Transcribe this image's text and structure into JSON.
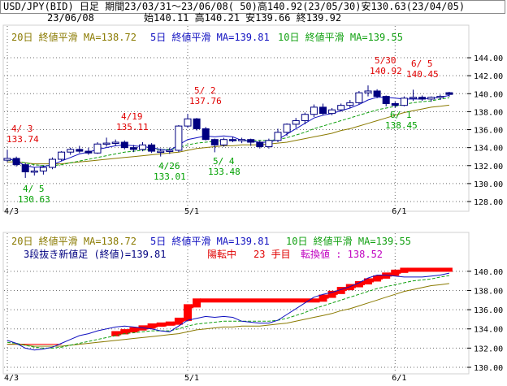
{
  "header": {
    "title": "USD/JPY(BID) 日足 期間23/03/31～23/06/08( 50)高140.92(23/05/30)安130.63(23/04/05)",
    "date": "23/06/08",
    "ohlc": "始140.11 高140.21 安139.66 終139.92"
  },
  "colors": {
    "ma20": "#8a7a00",
    "ma5": "#1010c0",
    "ma10": "#10a010",
    "candle": "#000080",
    "high_label": "#e00000",
    "low_label": "#00a000",
    "line_break": "#ff0000",
    "reversal_value": "#c000c0",
    "grid": "#6e6e6e",
    "frame": "#d0d0d0"
  },
  "upper": {
    "legend": {
      "ma20": "20日 終値平滑 MA=138.72",
      "ma5": "5日 終値平滑 MA=139.81",
      "ma10": "10日 終値平滑 MA=139.55"
    }
  },
  "lower": {
    "legend": {
      "ma20": "20日 終値平滑 MA=138.72",
      "ma5": "5日 終値平滑 MA=139.81",
      "ma10": "10日 終値平滑 MA=139.55"
    },
    "status": {
      "part1": "3段抜き新値足 (終値)=139.81",
      "part2": "陽転中",
      "part3": "23 手目",
      "part4": "転換値 : 138.52"
    }
  },
  "chart_data": [
    {
      "type": "candlestick",
      "title": "USD/JPY(BID) 日足",
      "ylim": [
        128,
        145
      ],
      "y_ticks": [
        "144.00",
        "142.00",
        "140.00",
        "138.00",
        "136.00",
        "134.00",
        "132.00",
        "130.00",
        "128.00"
      ],
      "x_tick_labels": [
        "4/3",
        "5/1",
        "6/1"
      ],
      "annotations": [
        {
          "date": "4/3",
          "label": "4/ 3",
          "value": "133.74",
          "kind": "high"
        },
        {
          "date": "4/5",
          "label": "4/ 5",
          "value": "130.63",
          "kind": "low"
        },
        {
          "date": "4/19",
          "label": "4/19",
          "value": "135.11",
          "kind": "high"
        },
        {
          "date": "4/26",
          "label": "4/26",
          "value": "133.01",
          "kind": "low"
        },
        {
          "date": "5/2",
          "label": "5/ 2",
          "value": "137.76",
          "kind": "high"
        },
        {
          "date": "5/4",
          "label": "5/ 4",
          "value": "133.48",
          "kind": "low"
        },
        {
          "date": "5/30",
          "label": "5/30",
          "value": "140.92",
          "kind": "high"
        },
        {
          "date": "6/1",
          "label": "6/ 1",
          "value": "138.45",
          "kind": "low"
        },
        {
          "date": "6/5",
          "label": "6/ 5",
          "value": "140.45",
          "kind": "high"
        }
      ],
      "candles": [
        {
          "o": 132.6,
          "h": 133.74,
          "l": 132.4,
          "c": 132.8
        },
        {
          "o": 132.8,
          "h": 133.0,
          "l": 131.9,
          "c": 132.1
        },
        {
          "o": 132.1,
          "h": 132.3,
          "l": 130.63,
          "c": 131.3
        },
        {
          "o": 131.3,
          "h": 131.8,
          "l": 130.9,
          "c": 131.4
        },
        {
          "o": 131.4,
          "h": 132.0,
          "l": 131.0,
          "c": 131.8
        },
        {
          "o": 131.8,
          "h": 132.9,
          "l": 131.6,
          "c": 132.7
        },
        {
          "o": 132.7,
          "h": 133.6,
          "l": 132.5,
          "c": 133.5
        },
        {
          "o": 133.5,
          "h": 134.0,
          "l": 133.2,
          "c": 133.8
        },
        {
          "o": 133.8,
          "h": 134.2,
          "l": 133.4,
          "c": 133.6
        },
        {
          "o": 133.6,
          "h": 134.0,
          "l": 133.2,
          "c": 133.4
        },
        {
          "o": 133.4,
          "h": 134.6,
          "l": 133.3,
          "c": 134.4
        },
        {
          "o": 134.4,
          "h": 135.11,
          "l": 134.1,
          "c": 134.5
        },
        {
          "o": 134.5,
          "h": 134.9,
          "l": 134.2,
          "c": 134.6
        },
        {
          "o": 134.6,
          "h": 134.8,
          "l": 133.8,
          "c": 134.0
        },
        {
          "o": 134.0,
          "h": 134.3,
          "l": 133.5,
          "c": 133.8
        },
        {
          "o": 133.8,
          "h": 134.6,
          "l": 133.6,
          "c": 134.3
        },
        {
          "o": 134.3,
          "h": 134.5,
          "l": 133.4,
          "c": 133.6
        },
        {
          "o": 133.6,
          "h": 133.9,
          "l": 133.01,
          "c": 133.6
        },
        {
          "o": 133.6,
          "h": 134.0,
          "l": 133.3,
          "c": 133.7
        },
        {
          "o": 133.7,
          "h": 136.5,
          "l": 133.5,
          "c": 136.4
        },
        {
          "o": 136.4,
          "h": 137.76,
          "l": 136.2,
          "c": 137.2
        },
        {
          "o": 137.2,
          "h": 137.3,
          "l": 135.9,
          "c": 136.1
        },
        {
          "o": 136.1,
          "h": 136.3,
          "l": 134.8,
          "c": 134.9
        },
        {
          "o": 134.9,
          "h": 135.0,
          "l": 133.48,
          "c": 134.3
        },
        {
          "o": 134.3,
          "h": 135.1,
          "l": 134.1,
          "c": 134.9
        },
        {
          "o": 134.9,
          "h": 135.2,
          "l": 134.6,
          "c": 134.8
        },
        {
          "o": 134.8,
          "h": 135.1,
          "l": 134.5,
          "c": 134.9
        },
        {
          "o": 134.9,
          "h": 135.0,
          "l": 134.2,
          "c": 134.6
        },
        {
          "o": 134.6,
          "h": 134.8,
          "l": 133.9,
          "c": 134.1
        },
        {
          "o": 134.1,
          "h": 135.0,
          "l": 133.9,
          "c": 134.8
        },
        {
          "o": 134.8,
          "h": 136.1,
          "l": 134.6,
          "c": 135.7
        },
        {
          "o": 135.7,
          "h": 136.7,
          "l": 135.3,
          "c": 136.6
        },
        {
          "o": 136.6,
          "h": 137.3,
          "l": 136.2,
          "c": 137.0
        },
        {
          "o": 137.0,
          "h": 137.9,
          "l": 136.6,
          "c": 137.7
        },
        {
          "o": 137.7,
          "h": 138.8,
          "l": 137.4,
          "c": 138.5
        },
        {
          "o": 138.5,
          "h": 138.9,
          "l": 137.6,
          "c": 137.8
        },
        {
          "o": 137.8,
          "h": 138.4,
          "l": 137.6,
          "c": 138.2
        },
        {
          "o": 138.2,
          "h": 138.9,
          "l": 138.0,
          "c": 138.7
        },
        {
          "o": 138.7,
          "h": 139.3,
          "l": 138.4,
          "c": 139.0
        },
        {
          "o": 139.0,
          "h": 140.3,
          "l": 138.8,
          "c": 140.1
        },
        {
          "o": 140.1,
          "h": 140.92,
          "l": 139.7,
          "c": 140.3
        },
        {
          "o": 140.3,
          "h": 140.5,
          "l": 139.5,
          "c": 139.7
        },
        {
          "o": 139.7,
          "h": 139.8,
          "l": 138.6,
          "c": 138.9
        },
        {
          "o": 138.9,
          "h": 139.1,
          "l": 138.45,
          "c": 138.7
        },
        {
          "o": 138.7,
          "h": 139.7,
          "l": 138.6,
          "c": 139.5
        },
        {
          "o": 139.5,
          "h": 140.45,
          "l": 139.2,
          "c": 139.6
        },
        {
          "o": 139.6,
          "h": 139.8,
          "l": 139.2,
          "c": 139.4
        },
        {
          "o": 139.4,
          "h": 139.7,
          "l": 139.1,
          "c": 139.6
        },
        {
          "o": 139.6,
          "h": 139.9,
          "l": 139.3,
          "c": 139.7
        },
        {
          "o": 140.11,
          "h": 140.21,
          "l": 139.66,
          "c": 139.92
        }
      ],
      "series": [
        {
          "name": "5日 終値平滑",
          "values": [
            132.8,
            132.5,
            132.0,
            131.8,
            131.9,
            132.1,
            132.5,
            132.9,
            133.3,
            133.5,
            133.8,
            134.0,
            134.2,
            134.3,
            134.2,
            134.1,
            134.0,
            133.8,
            133.7,
            134.3,
            134.9,
            135.1,
            135.3,
            135.2,
            135.3,
            135.2,
            134.8,
            134.7,
            134.6,
            134.6,
            134.9,
            135.5,
            136.1,
            136.7,
            137.3,
            137.6,
            137.8,
            138.1,
            138.4,
            138.8,
            139.3,
            139.6,
            139.6,
            139.5,
            139.4,
            139.4,
            139.4,
            139.5,
            139.6,
            139.81
          ]
        },
        {
          "name": "10日 終値平滑",
          "values": [
            132.6,
            132.5,
            132.3,
            132.1,
            132.0,
            132.0,
            132.1,
            132.3,
            132.5,
            132.7,
            132.9,
            133.1,
            133.3,
            133.5,
            133.6,
            133.7,
            133.8,
            133.8,
            133.8,
            134.0,
            134.3,
            134.5,
            134.6,
            134.7,
            134.8,
            134.8,
            134.8,
            134.8,
            134.8,
            134.8,
            134.9,
            135.1,
            135.4,
            135.7,
            136.1,
            136.4,
            136.7,
            137.0,
            137.3,
            137.6,
            137.9,
            138.2,
            138.4,
            138.6,
            138.8,
            139.0,
            139.1,
            139.2,
            139.4,
            139.55
          ]
        },
        {
          "name": "20日 終値平滑",
          "values": [
            132.4,
            132.4,
            132.3,
            132.2,
            132.2,
            132.2,
            132.2,
            132.3,
            132.4,
            132.5,
            132.6,
            132.7,
            132.8,
            132.9,
            133.0,
            133.1,
            133.2,
            133.3,
            133.4,
            133.5,
            133.7,
            133.9,
            134.0,
            134.1,
            134.2,
            134.2,
            134.3,
            134.3,
            134.3,
            134.4,
            134.5,
            134.6,
            134.8,
            135.0,
            135.2,
            135.4,
            135.6,
            135.9,
            136.1,
            136.4,
            136.7,
            137.0,
            137.3,
            137.6,
            137.9,
            138.1,
            138.3,
            138.5,
            138.6,
            138.72
          ]
        }
      ]
    },
    {
      "type": "line-break",
      "title": "3段抜き新値足 (終値)",
      "ylim": [
        130,
        141
      ],
      "y_ticks": [
        "140.00",
        "138.00",
        "136.00",
        "134.00",
        "132.00",
        "130.00"
      ],
      "x_tick_labels": [
        "4/3",
        "5/1",
        "6/1"
      ],
      "close": 139.81,
      "reversal_value": 138.52,
      "steps": [
        {
          "x": 12,
          "lo": 133.4,
          "hi": 133.6
        },
        {
          "x": 13,
          "lo": 133.6,
          "hi": 133.8
        },
        {
          "x": 14,
          "lo": 133.8,
          "hi": 134.0
        },
        {
          "x": 15,
          "lo": 134.0,
          "hi": 134.2
        },
        {
          "x": 16,
          "lo": 134.2,
          "hi": 134.4
        },
        {
          "x": 17,
          "lo": 134.4,
          "hi": 134.5
        },
        {
          "x": 18,
          "lo": 134.5,
          "hi": 134.6
        },
        {
          "x": 19,
          "lo": 134.6,
          "hi": 135.0
        },
        {
          "x": 20,
          "lo": 135.0,
          "hi": 136.4
        },
        {
          "x": 21,
          "lo": 136.4,
          "hi": 137.0
        },
        {
          "x": 35,
          "lo": 137.0,
          "hi": 137.4
        },
        {
          "x": 36,
          "lo": 137.4,
          "hi": 137.8
        },
        {
          "x": 37,
          "lo": 137.8,
          "hi": 138.2
        },
        {
          "x": 38,
          "lo": 138.2,
          "hi": 138.5
        },
        {
          "x": 39,
          "lo": 138.5,
          "hi": 138.8
        },
        {
          "x": 40,
          "lo": 138.8,
          "hi": 139.1
        },
        {
          "x": 41,
          "lo": 139.1,
          "hi": 139.4
        },
        {
          "x": 42,
          "lo": 139.4,
          "hi": 139.7
        },
        {
          "x": 43,
          "lo": 139.7,
          "hi": 140.0
        },
        {
          "x": 44,
          "lo": 140.0,
          "hi": 140.2
        }
      ]
    }
  ]
}
